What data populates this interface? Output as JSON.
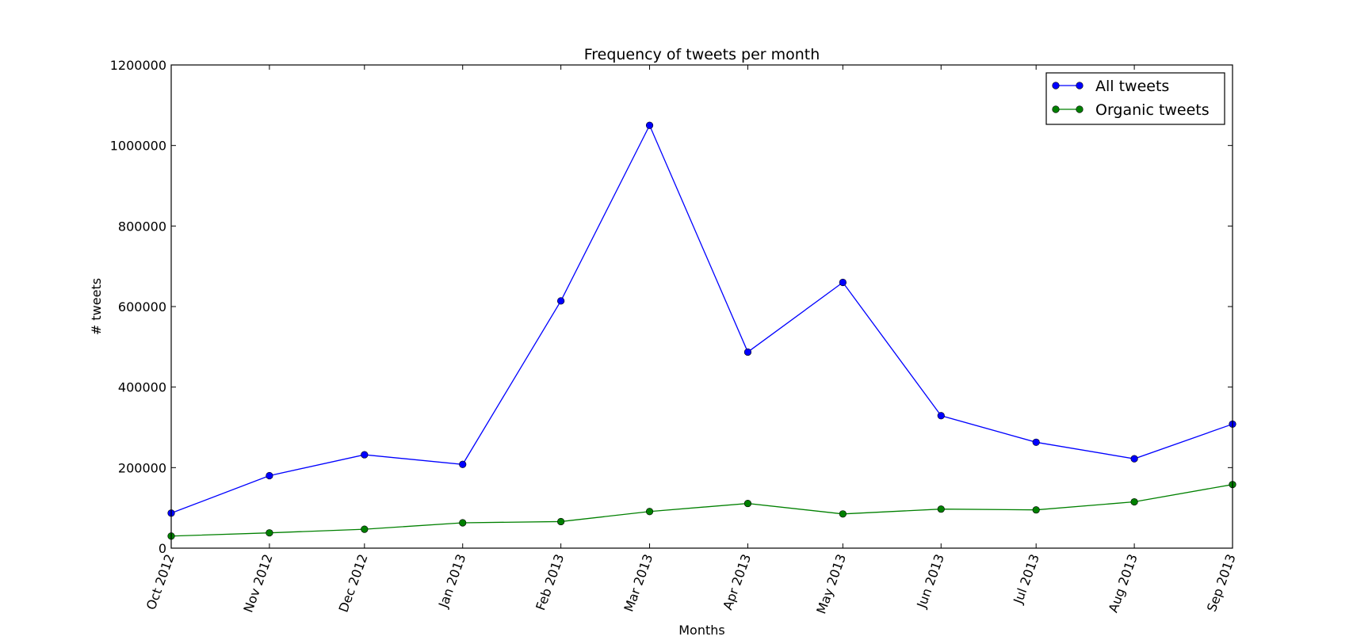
{
  "chart_data": {
    "type": "line",
    "title": "Frequency of tweets per month",
    "xlabel": "Months",
    "ylabel": "# tweets",
    "categories": [
      "Oct 2012",
      "Nov 2012",
      "Dec 2012",
      "Jan 2013",
      "Feb 2013",
      "Mar 2013",
      "Apr 2013",
      "May 2013",
      "Jun 2013",
      "Jul 2013",
      "Aug 2013",
      "Sep 2013"
    ],
    "x_dates": [
      "2012-10-01",
      "2012-11-01",
      "2012-12-01",
      "2013-01-01",
      "2013-02-01",
      "2013-03-01",
      "2013-04-01",
      "2013-05-01",
      "2013-06-01",
      "2013-07-01",
      "2013-08-01",
      "2013-09-01"
    ],
    "ylim": [
      0,
      1200000
    ],
    "yticks": [
      0,
      200000,
      400000,
      600000,
      800000,
      1000000,
      1200000
    ],
    "ytick_labels": [
      "0",
      "200000",
      "400000",
      "600000",
      "800000",
      "1000000",
      "1200000"
    ],
    "grid": false,
    "legend_position": "top-right",
    "series": [
      {
        "name": "All tweets",
        "color": "#0000ff",
        "values": [
          87000,
          180000,
          232000,
          208000,
          614000,
          1050000,
          487000,
          660000,
          329000,
          263000,
          222000,
          308000
        ]
      },
      {
        "name": "Organic tweets",
        "color": "#008000",
        "values": [
          30000,
          38000,
          47000,
          63000,
          66000,
          91000,
          111000,
          85000,
          97000,
          95000,
          115000,
          158000
        ]
      }
    ]
  }
}
